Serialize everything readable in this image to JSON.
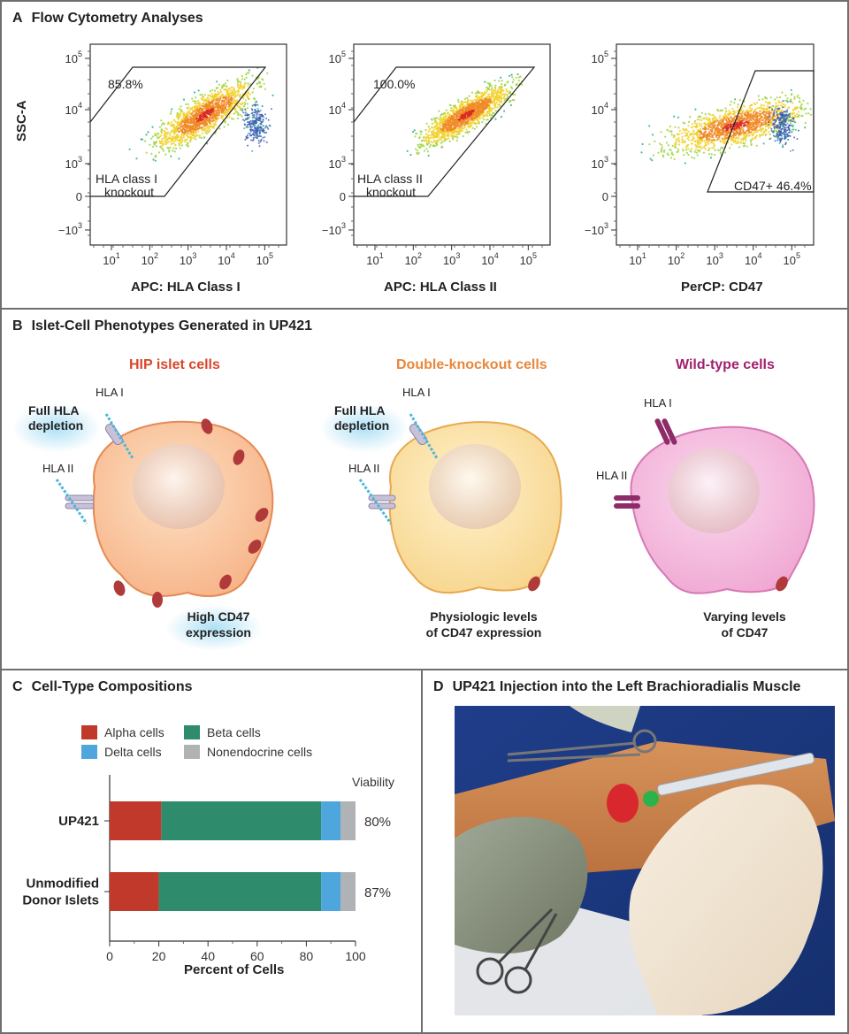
{
  "panelA": {
    "letter": "A",
    "title": "Flow Cytometry Analyses",
    "ylabel": "SSC-A",
    "plots": [
      {
        "xlabel": "APC: HLA Class I",
        "gate_pct": "85.8%",
        "gate_label_1": "HLA class I",
        "gate_label_2": "knockout"
      },
      {
        "xlabel": "APC: HLA Class II",
        "gate_pct": "100.0%",
        "gate_label_1": "HLA class II",
        "gate_label_2": "knockout"
      },
      {
        "xlabel": "PerCP: CD47",
        "gate_pct": "CD47+ 46.4%"
      }
    ],
    "xticks": [
      "10",
      "10",
      "10",
      "10",
      "10"
    ],
    "xtick_exps": [
      "1",
      "2",
      "3",
      "4",
      "5"
    ],
    "yticks": [
      "10",
      "10",
      "10",
      "0",
      "−10"
    ],
    "ytick_exps": [
      "5",
      "4",
      "3",
      "",
      "3"
    ]
  },
  "panelB": {
    "letter": "B",
    "title": "Islet-Cell Phenotypes Generated in UP421",
    "cells": [
      {
        "title": "HIP islet cells",
        "color": "#d9472b",
        "note_1": "High CD47",
        "note_2": "expression",
        "hla1": "HLA I",
        "hla2": "HLA II",
        "depletion_1": "Full HLA",
        "depletion_2": "depletion"
      },
      {
        "title": "Double-knockout cells",
        "color": "#e8873a",
        "note_1": "Physiologic levels",
        "note_2": "of CD47 expression",
        "hla1": "HLA I",
        "hla2": "HLA II",
        "depletion_1": "Full HLA",
        "depletion_2": "depletion"
      },
      {
        "title": "Wild-type cells",
        "color": "#a0206e",
        "note_1": "Varying levels",
        "note_2": "of CD47",
        "hla1": "HLA I",
        "hla2": "HLA II"
      }
    ]
  },
  "panelC": {
    "letter": "C",
    "title": "Cell-Type Compositions",
    "viability_header": "Viability"
  },
  "panelD": {
    "letter": "D",
    "title": "UP421 Injection into the Left Brachioradialis Muscle"
  },
  "chart_data": {
    "type": "bar",
    "orientation": "horizontal",
    "stacked": true,
    "categories": [
      "UP421",
      "Unmodified Donor Islets"
    ],
    "category_lines": [
      [
        "UP421"
      ],
      [
        "Unmodified",
        "Donor Islets"
      ]
    ],
    "series": [
      {
        "name": "Alpha cells",
        "color": "#c0392b",
        "values": [
          21,
          20
        ]
      },
      {
        "name": "Beta cells",
        "color": "#2e8b6b",
        "values": [
          65,
          66
        ]
      },
      {
        "name": "Delta cells",
        "color": "#4ea6dc",
        "values": [
          8,
          8
        ]
      },
      {
        "name": "Nonendocrine cells",
        "color": "#b0b3b6",
        "values": [
          6,
          6
        ]
      }
    ],
    "viability": [
      "80%",
      "87%"
    ],
    "xlabel": "Percent of Cells",
    "xlim": [
      0,
      100
    ],
    "xticks": [
      "0",
      "20",
      "40",
      "60",
      "80",
      "100"
    ]
  }
}
